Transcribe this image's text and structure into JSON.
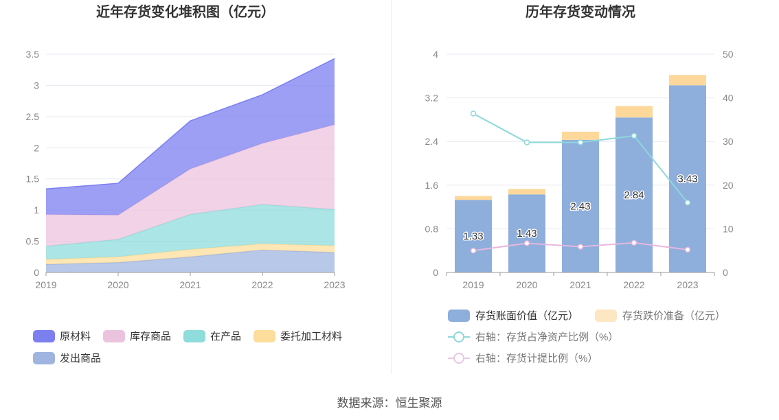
{
  "source": "数据来源：恒生聚源",
  "charts": {
    "left": {
      "type": "area",
      "title": "近年存货变化堆积图（亿元）",
      "x": [
        "2019",
        "2020",
        "2021",
        "2022",
        "2023"
      ],
      "ylim": [
        0,
        3.5
      ],
      "yticks": [
        "0",
        "0.5",
        "1",
        "1.5",
        "2",
        "2.5",
        "3",
        "3.5"
      ],
      "yticks_values": [
        0,
        0.5,
        1,
        1.5,
        2,
        2.5,
        3,
        3.5
      ],
      "stack_order_bottom_to_top": [
        "发出商品",
        "委托加工材料",
        "在产品",
        "库存商品",
        "原材料"
      ],
      "series": [
        {
          "name": "原材料",
          "color": "#7b7ff0",
          "values": [
            0.41,
            0.51,
            0.77,
            0.78,
            1.06
          ]
        },
        {
          "name": "库存商品",
          "color": "#ecc3de",
          "values": [
            0.51,
            0.39,
            0.73,
            0.98,
            1.36
          ]
        },
        {
          "name": "在产品",
          "color": "#8fdcdc",
          "values": [
            0.21,
            0.28,
            0.56,
            0.63,
            0.58
          ]
        },
        {
          "name": "委托加工材料",
          "color": "#fddd9c",
          "values": [
            0.08,
            0.09,
            0.12,
            0.1,
            0.11
          ]
        },
        {
          "name": "发出商品",
          "color": "#9fb5e0",
          "values": [
            0.13,
            0.16,
            0.25,
            0.36,
            0.32
          ]
        }
      ],
      "legend": [
        "原材料",
        "库存商品",
        "在产品",
        "委托加工材料",
        "发出商品"
      ]
    },
    "right": {
      "type": "bar",
      "title": "历年存货变动情况",
      "categories": [
        "2019",
        "2020",
        "2021",
        "2022",
        "2023"
      ],
      "ylim_left": [
        0,
        4
      ],
      "yticks_left": [
        "0",
        "0.8",
        "1.6",
        "2.4",
        "3.2",
        "4"
      ],
      "yticks_left_values": [
        0,
        0.8,
        1.6,
        2.4,
        3.2,
        4
      ],
      "ylim_right": [
        0,
        50
      ],
      "yticks_right": [
        "0",
        "10",
        "20",
        "30",
        "40",
        "50"
      ],
      "yticks_right_values": [
        0,
        10,
        20,
        30,
        40,
        50
      ],
      "series": [
        {
          "name": "存货账面价值（亿元）",
          "kind": "bar",
          "color": "#8eaedc",
          "values": [
            1.33,
            1.43,
            2.43,
            2.84,
            3.43
          ],
          "labels": [
            "1.33",
            "1.43",
            "2.43",
            "2.84",
            "3.43"
          ]
        },
        {
          "name": "存货跌价准备（亿元）",
          "kind": "bar-stack",
          "color": "#fdd89a",
          "values": [
            0.07,
            0.1,
            0.15,
            0.21,
            0.19
          ]
        },
        {
          "name": "右轴：存货占净资产比例（%）",
          "kind": "line",
          "axis": "right",
          "color": "#8dd8dc",
          "values": [
            36.4,
            29.8,
            29.8,
            31.3,
            16.0
          ]
        },
        {
          "name": "右轴：存货计提比例（%）",
          "kind": "line",
          "axis": "right",
          "color": "#e6b7dc",
          "values": [
            5.0,
            6.7,
            5.9,
            6.8,
            5.2
          ]
        }
      ],
      "legend_colors": {
        "bar1": "#8eaedc",
        "bar2": "#fde6c2",
        "line1": "#8dd8dc",
        "line2": "#ecc6e2"
      }
    }
  }
}
